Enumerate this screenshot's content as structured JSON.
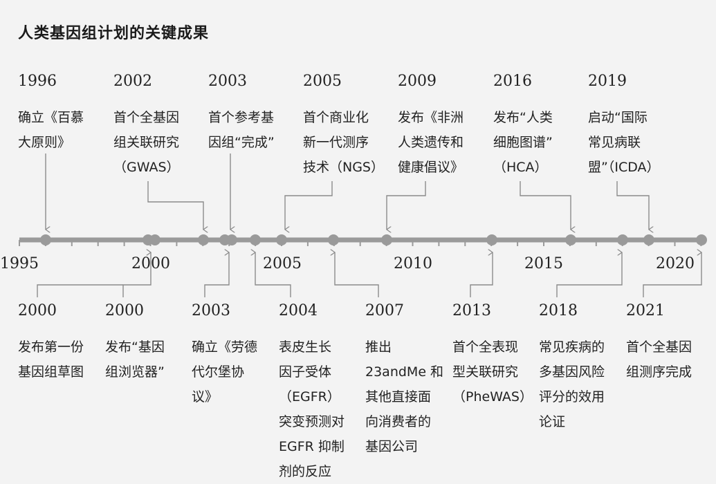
{
  "title": "人类基因组计划的关键成果",
  "axis": {
    "start_year": 1995,
    "end_year": 2021,
    "labels": [
      "1995",
      "2000",
      "2005",
      "2010",
      "2015",
      "2020"
    ]
  },
  "top_events": [
    {
      "year": "1996",
      "text": "确立《百慕\n大原则》"
    },
    {
      "year": "2002",
      "text": "首个全基因\n组关联研究\n（GWAS）"
    },
    {
      "year": "2003",
      "text": "首个参考基\n因组“完成”"
    },
    {
      "year": "2005",
      "text": "首个商业化\n新一代测序\n技术（NGS）"
    },
    {
      "year": "2009",
      "text": "发布《非洲\n人类遗传和\n健康倡议》"
    },
    {
      "year": "2016",
      "text": "发布“人类\n细胞图谱”\n（HCA）"
    },
    {
      "year": "2019",
      "text": "启动“国际\n常见病联\n盟”（ICDA）"
    }
  ],
  "bottom_events": [
    {
      "year": "2000",
      "text": "发布第一份\n基因组草图"
    },
    {
      "year": "2000",
      "text": "发布“基因\n组浏览器”"
    },
    {
      "year": "2003",
      "text": "确立《劳德\n代尔堡协\n议》"
    },
    {
      "year": "2004",
      "text": "表皮生长\n因子受体\n（EGFR）\n突变预测对\nEGFR 抑制\n剂的反应"
    },
    {
      "year": "2007",
      "text": "推出\n23andMe 和\n其他直接面\n向消费者的\n基因公司"
    },
    {
      "year": "2013",
      "text": "首个全表现\n型关联研究\n（PheWAS）"
    },
    {
      "year": "2018",
      "text": "常见疾病的\n多基因风险\n评分的效用\n论证"
    },
    {
      "year": "2021",
      "text": "首个全基因\n组测序完成"
    }
  ],
  "colors": {
    "axis": "#9a9a9a",
    "dot": "#9a9a9a",
    "connector": "#8a8a8a",
    "background": "#f3f3f3"
  }
}
